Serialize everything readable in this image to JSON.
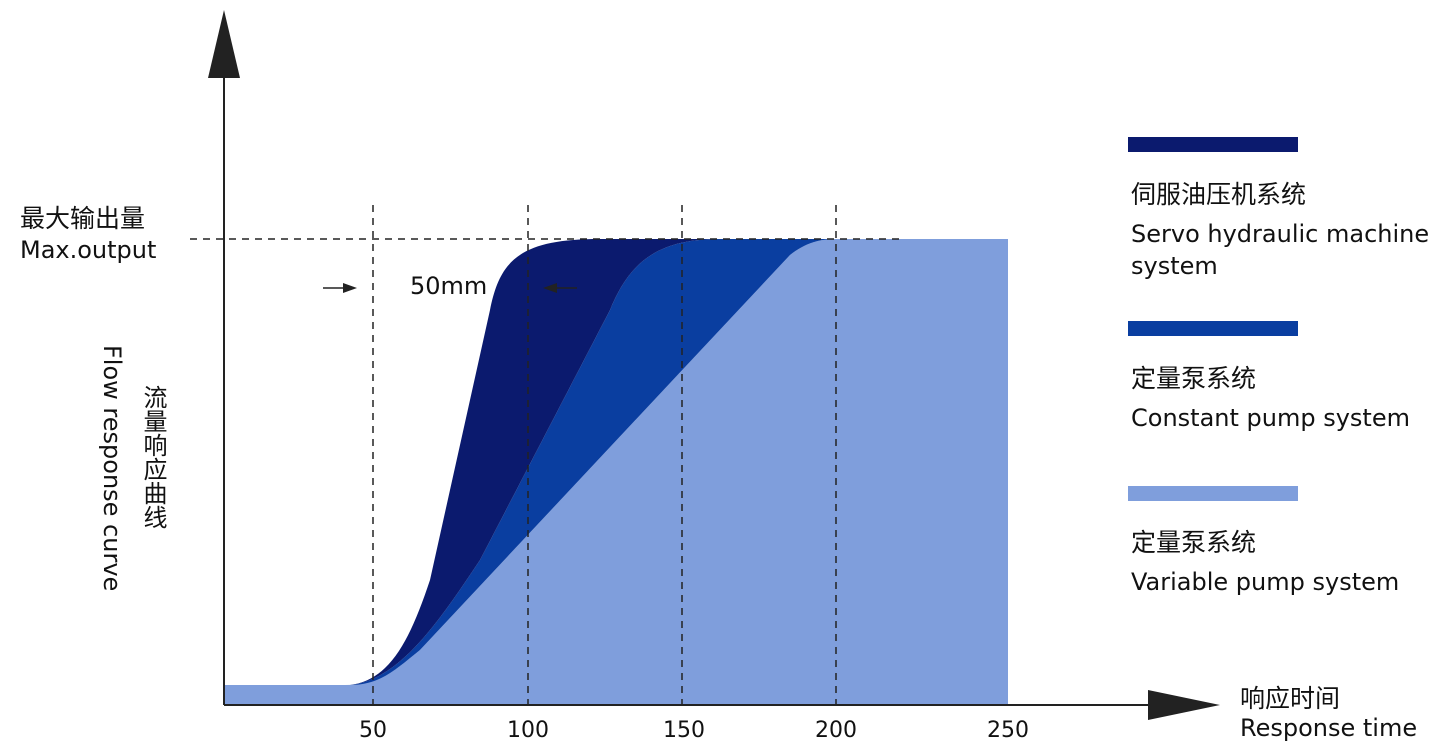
{
  "y_axis": {
    "max_label_zh": "最大输出量",
    "max_label_en": "Max.output",
    "title_zh": "流量响应曲线",
    "title_en": "Flow response curve"
  },
  "x_axis": {
    "title_zh": "响应时间",
    "title_en": "Response time",
    "ticks": [
      "50",
      "100",
      "150",
      "200",
      "250"
    ]
  },
  "annotation": "50mm",
  "legend": [
    {
      "name_zh": "伺服油压机系统",
      "name_en": [
        "Servo hydraulic machine",
        "system"
      ]
    },
    {
      "name_zh": "定量泵系统",
      "name_en": [
        "Constant pump system"
      ]
    },
    {
      "name_zh": "定量泵系统",
      "name_en": [
        "Variable pump system"
      ]
    }
  ]
}
